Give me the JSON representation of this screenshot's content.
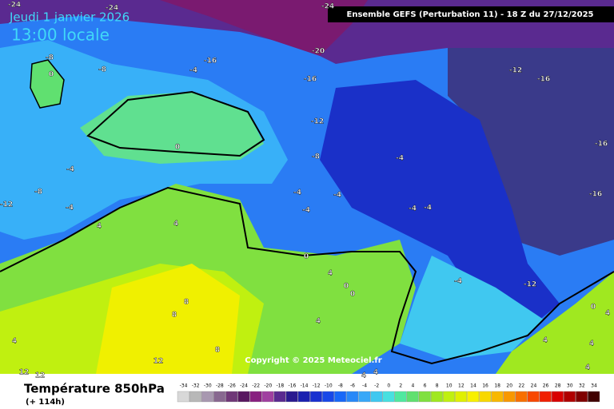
{
  "header": {
    "date": "Jeudi 1 janvier 2026",
    "time": "13:00 locale",
    "run": "Ensemble GEFS  (Perturbation 11)  - 18 Z du 27/12/2025"
  },
  "map": {
    "contour_labels": [
      -24,
      -24,
      -24,
      -8,
      0,
      -8,
      -16,
      -4,
      -20,
      -16,
      -12,
      -16,
      -12,
      0,
      -8,
      -4,
      -16,
      -4,
      -8,
      -12,
      -4,
      4,
      4,
      -4,
      -4,
      -4,
      -4,
      -4,
      -16,
      0,
      4,
      0,
      0,
      -4,
      -12,
      8,
      8,
      4,
      8,
      12,
      12,
      12,
      4,
      4,
      4,
      4,
      4,
      4,
      4,
      0
    ],
    "copyright": "Copyright © 2025 Meteociel.fr"
  },
  "footer": {
    "title": "Température 850hPa",
    "lead": "(+ 114h)",
    "scale": {
      "values": [
        -34,
        -32,
        -30,
        -28,
        -26,
        -24,
        -22,
        -20,
        -18,
        -16,
        -14,
        -12,
        -10,
        -8,
        -6,
        -4,
        -2,
        0,
        2,
        4,
        6,
        8,
        10,
        12,
        14,
        16,
        18,
        20,
        22,
        24,
        26,
        28,
        30,
        32,
        34
      ],
      "colors": [
        "#d8d8d8",
        "#b8b8b8",
        "#a898b0",
        "#886890",
        "#703878",
        "#581860",
        "#882080",
        "#a040a0",
        "#5a2a90",
        "#2a1a90",
        "#1a20b0",
        "#1830d0",
        "#1848e8",
        "#1868f8",
        "#2888f8",
        "#38a8f8",
        "#40c8f0",
        "#48e0e0",
        "#50e8a0",
        "#60e070",
        "#80e040",
        "#a0e820",
        "#c0f010",
        "#e0f000",
        "#f8f000",
        "#f8d800",
        "#f8b800",
        "#f89800",
        "#f87000",
        "#f84800",
        "#f02000",
        "#d80000",
        "#b00000",
        "#800000",
        "#400000"
      ]
    }
  }
}
